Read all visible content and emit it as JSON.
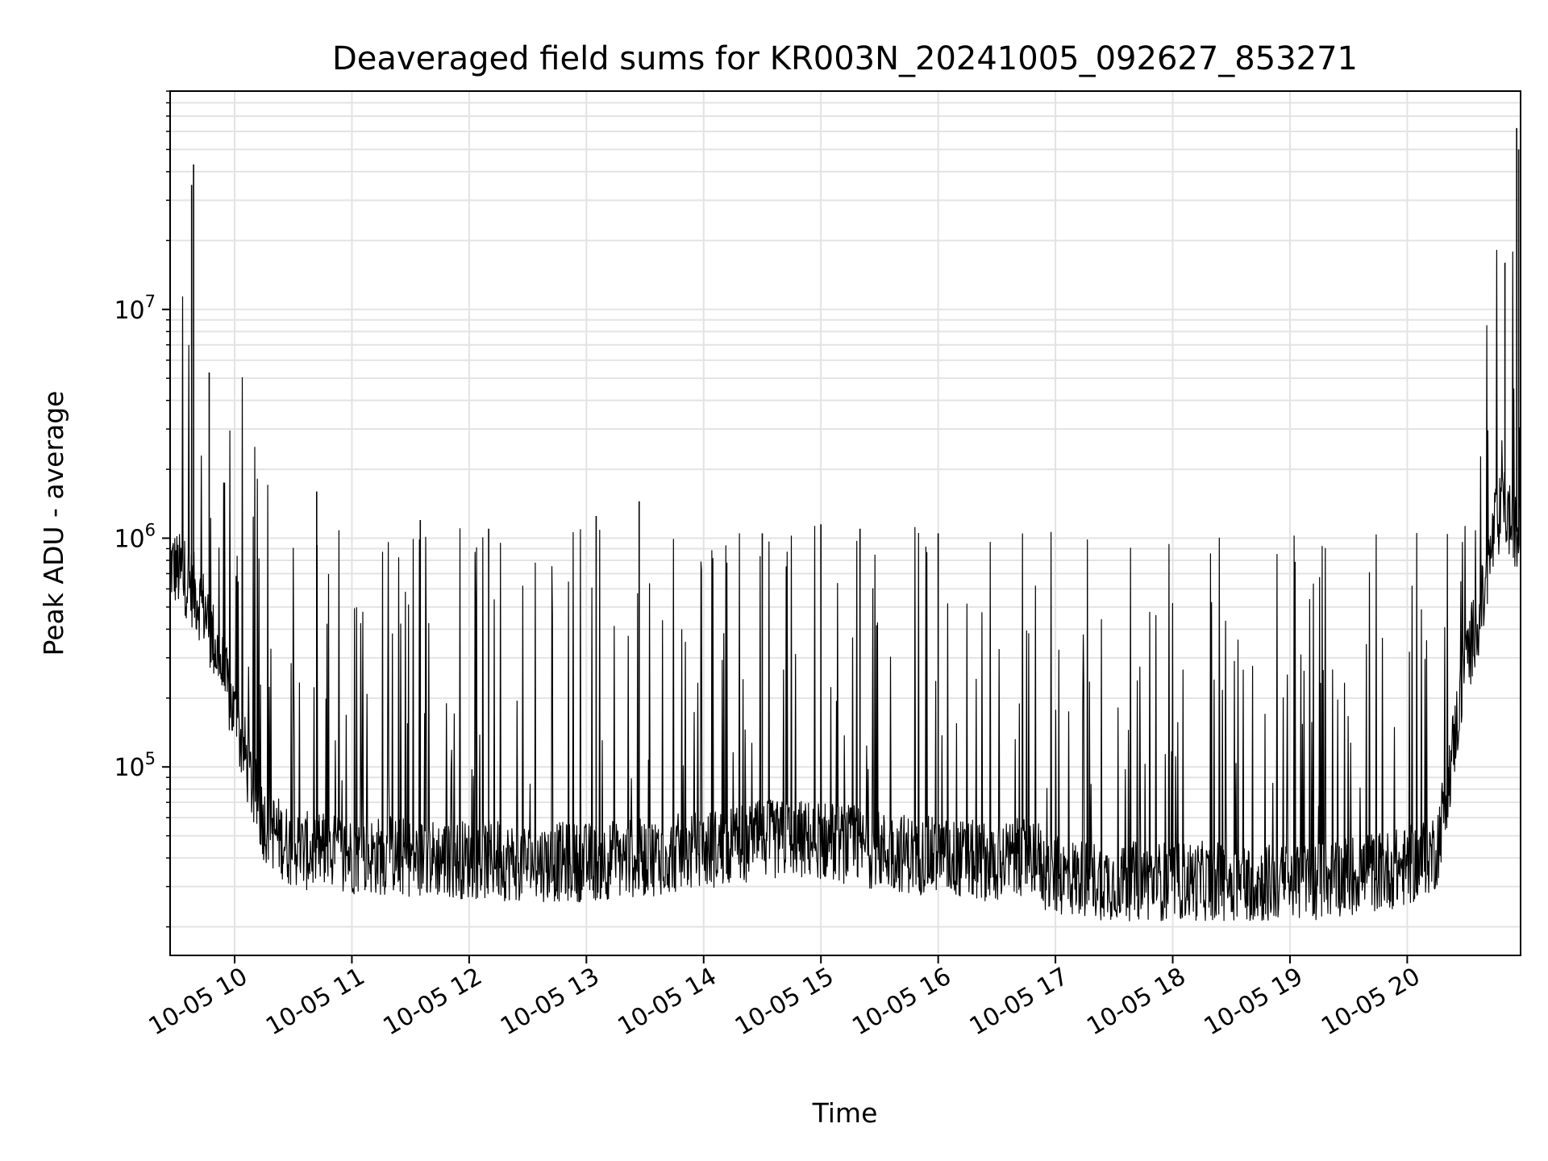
{
  "chart_data": {
    "type": "line",
    "title": "Deaveraged field sums for KR003N_20241005_092627_853271",
    "xlabel": "Time",
    "ylabel": "Peak ADU - average",
    "y_scale": "log",
    "grid": true,
    "legend": "none",
    "line_color": "#000000",
    "x_range": [
      "2024-10-05 09:27",
      "2024-10-05 20:58"
    ],
    "y_range": [
      15000,
      90000000
    ],
    "x_ticks": [
      {
        "time": "2024-10-05 10:00",
        "label": "10-05 10"
      },
      {
        "time": "2024-10-05 11:00",
        "label": "10-05 11"
      },
      {
        "time": "2024-10-05 12:00",
        "label": "10-05 12"
      },
      {
        "time": "2024-10-05 13:00",
        "label": "10-05 13"
      },
      {
        "time": "2024-10-05 14:00",
        "label": "10-05 14"
      },
      {
        "time": "2024-10-05 15:00",
        "label": "10-05 15"
      },
      {
        "time": "2024-10-05 16:00",
        "label": "10-05 16"
      },
      {
        "time": "2024-10-05 17:00",
        "label": "10-05 17"
      },
      {
        "time": "2024-10-05 18:00",
        "label": "10-05 18"
      },
      {
        "time": "2024-10-05 19:00",
        "label": "10-05 19"
      },
      {
        "time": "2024-10-05 20:00",
        "label": "10-05 20"
      }
    ],
    "y_ticks": [
      {
        "value": 100000,
        "base": "10",
        "exp": "5"
      },
      {
        "value": 1000000,
        "base": "10",
        "exp": "6"
      },
      {
        "value": 10000000,
        "base": "10",
        "exp": "7"
      }
    ],
    "baseline": {
      "time": [
        "2024-10-05 09:27",
        "2024-10-05 09:35",
        "2024-10-05 09:45",
        "2024-10-05 09:55",
        "2024-10-05 10:05",
        "2024-10-05 10:10",
        "2024-10-05 10:15",
        "2024-10-05 10:30",
        "2024-10-05 11:00",
        "2024-10-05 11:30",
        "2024-10-05 12:00",
        "2024-10-05 12:30",
        "2024-10-05 13:00",
        "2024-10-05 13:30",
        "2024-10-05 14:00",
        "2024-10-05 14:30",
        "2024-10-05 15:00",
        "2024-10-05 15:30",
        "2024-10-05 16:00",
        "2024-10-05 16:30",
        "2024-10-05 16:50",
        "2024-10-05 16:55",
        "2024-10-05 17:30",
        "2024-10-05 18:00",
        "2024-10-05 18:30",
        "2024-10-05 19:00",
        "2024-10-05 19:30",
        "2024-10-05 20:00",
        "2024-10-05 20:15",
        "2024-10-05 20:20",
        "2024-10-05 20:30",
        "2024-10-05 20:40",
        "2024-10-05 20:45",
        "2024-10-05 20:50",
        "2024-10-05 20:55",
        "2024-10-05 20:58"
      ],
      "value": [
        800000,
        700000,
        500000,
        250000,
        120000,
        80000,
        60000,
        45000,
        43000,
        42000,
        41000,
        40000,
        40000,
        42000,
        45000,
        50000,
        50000,
        45000,
        42000,
        40000,
        43000,
        35000,
        33000,
        33000,
        33000,
        32000,
        35000,
        38000,
        45000,
        80000,
        300000,
        600000,
        1200000,
        1400000,
        1100000,
        1000000
      ]
    },
    "peaks": [
      {
        "time": "2024-10-05 09:39",
        "value": 43000000
      },
      {
        "time": "2024-10-05 09:38",
        "value": 35000000
      },
      {
        "time": "2024-10-05 09:47",
        "value": 5300000
      },
      {
        "time": "2024-10-05 10:42",
        "value": 1600000
      },
      {
        "time": "2024-10-05 11:35",
        "value": 1200000
      },
      {
        "time": "2024-10-05 12:10",
        "value": 1100000
      },
      {
        "time": "2024-10-05 13:05",
        "value": 1250000
      },
      {
        "time": "2024-10-05 13:27",
        "value": 1450000
      },
      {
        "time": "2024-10-05 14:30",
        "value": 1050000
      },
      {
        "time": "2024-10-05 15:00",
        "value": 1150000
      },
      {
        "time": "2024-10-05 15:20",
        "value": 1100000
      },
      {
        "time": "2024-10-05 16:00",
        "value": 1050000
      },
      {
        "time": "2024-10-05 20:50",
        "value": 16000000
      },
      {
        "time": "2024-10-05 20:56",
        "value": 62000000
      },
      {
        "time": "2024-10-05 20:57",
        "value": 50000000
      }
    ]
  }
}
